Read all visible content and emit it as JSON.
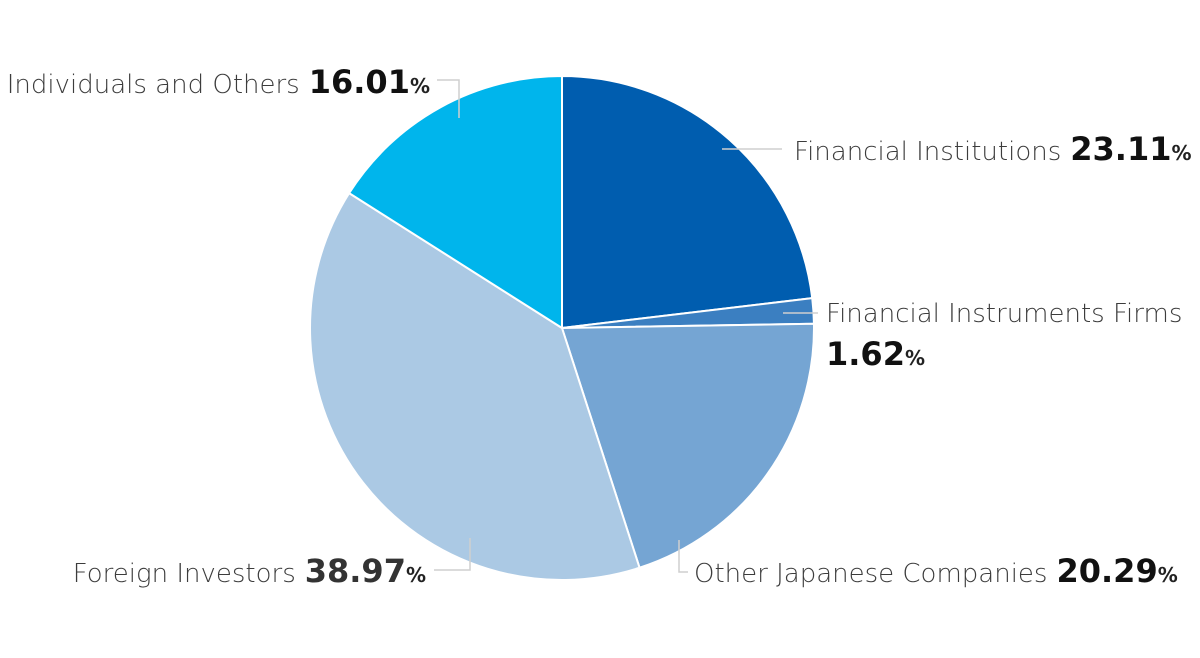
{
  "chart_data": {
    "type": "pie",
    "title": "",
    "start_angle_deg": 0,
    "direction": "clockwise",
    "slices": [
      {
        "name": "Financial Institutions",
        "value": 23.11,
        "color": "#005daf"
      },
      {
        "name": "Financial Instruments Firms",
        "value": 1.62,
        "color": "#3b7fc1"
      },
      {
        "name": "Other Japanese Companies",
        "value": 20.29,
        "color": "#75a5d3"
      },
      {
        "name": "Foreign Investors",
        "value": 38.97,
        "color": "#abc9e4"
      },
      {
        "name": "Individuals and Others",
        "value": 16.01,
        "color": "#00b5ec"
      }
    ],
    "labels": [
      {
        "name": "Financial Institutions",
        "value": "23.11",
        "unit": "%"
      },
      {
        "name": "Financial Instruments Firms",
        "value": "1.62",
        "unit": "%"
      },
      {
        "name": "Other Japanese Companies",
        "value": "20.29",
        "unit": "%"
      },
      {
        "name": "Foreign Investors",
        "value": "38.97",
        "unit": "%"
      },
      {
        "name": "Individuals and Others",
        "value": "16.01",
        "unit": "%"
      }
    ]
  }
}
